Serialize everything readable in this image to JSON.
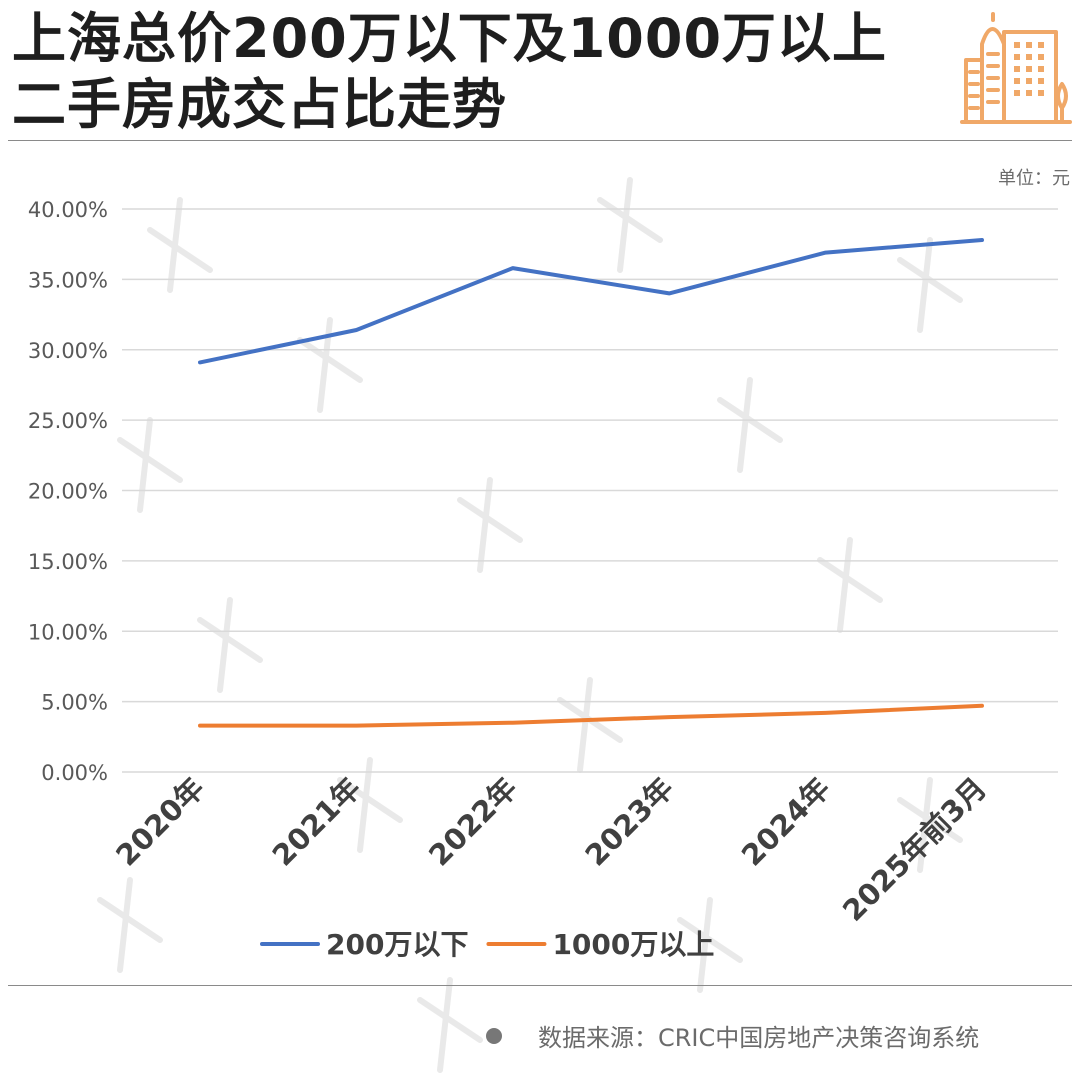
{
  "title": {
    "line1": "上海总价200万以下及1000万以上",
    "line2": "二手房成交占比走势"
  },
  "icon": "city-buildings-icon",
  "unit_label": "单位：元",
  "source": {
    "text": "数据来源：CRIC中国房地产决策咨询系统"
  },
  "colors": {
    "series_under_200": "#4472c4",
    "series_over_1000": "#ed7d31",
    "icon": "#f0a868",
    "grid": "#d9d9d9",
    "tick": "#595959"
  },
  "chart_data": {
    "type": "line",
    "categories": [
      "2020年",
      "2021年",
      "2022年",
      "2023年",
      "2024年",
      "2025年前3月"
    ],
    "series": [
      {
        "name": "200万以下",
        "values": [
          29.1,
          31.4,
          35.8,
          34.0,
          36.9,
          37.8
        ]
      },
      {
        "name": "1000万以上",
        "values": [
          3.3,
          3.3,
          3.5,
          3.9,
          4.2,
          4.7
        ]
      }
    ],
    "ylim": [
      0,
      40
    ],
    "yticks": [
      "0.00%",
      "5.00%",
      "10.00%",
      "15.00%",
      "20.00%",
      "25.00%",
      "30.00%",
      "35.00%",
      "40.00%"
    ],
    "grid": true,
    "legend": "bottom"
  }
}
